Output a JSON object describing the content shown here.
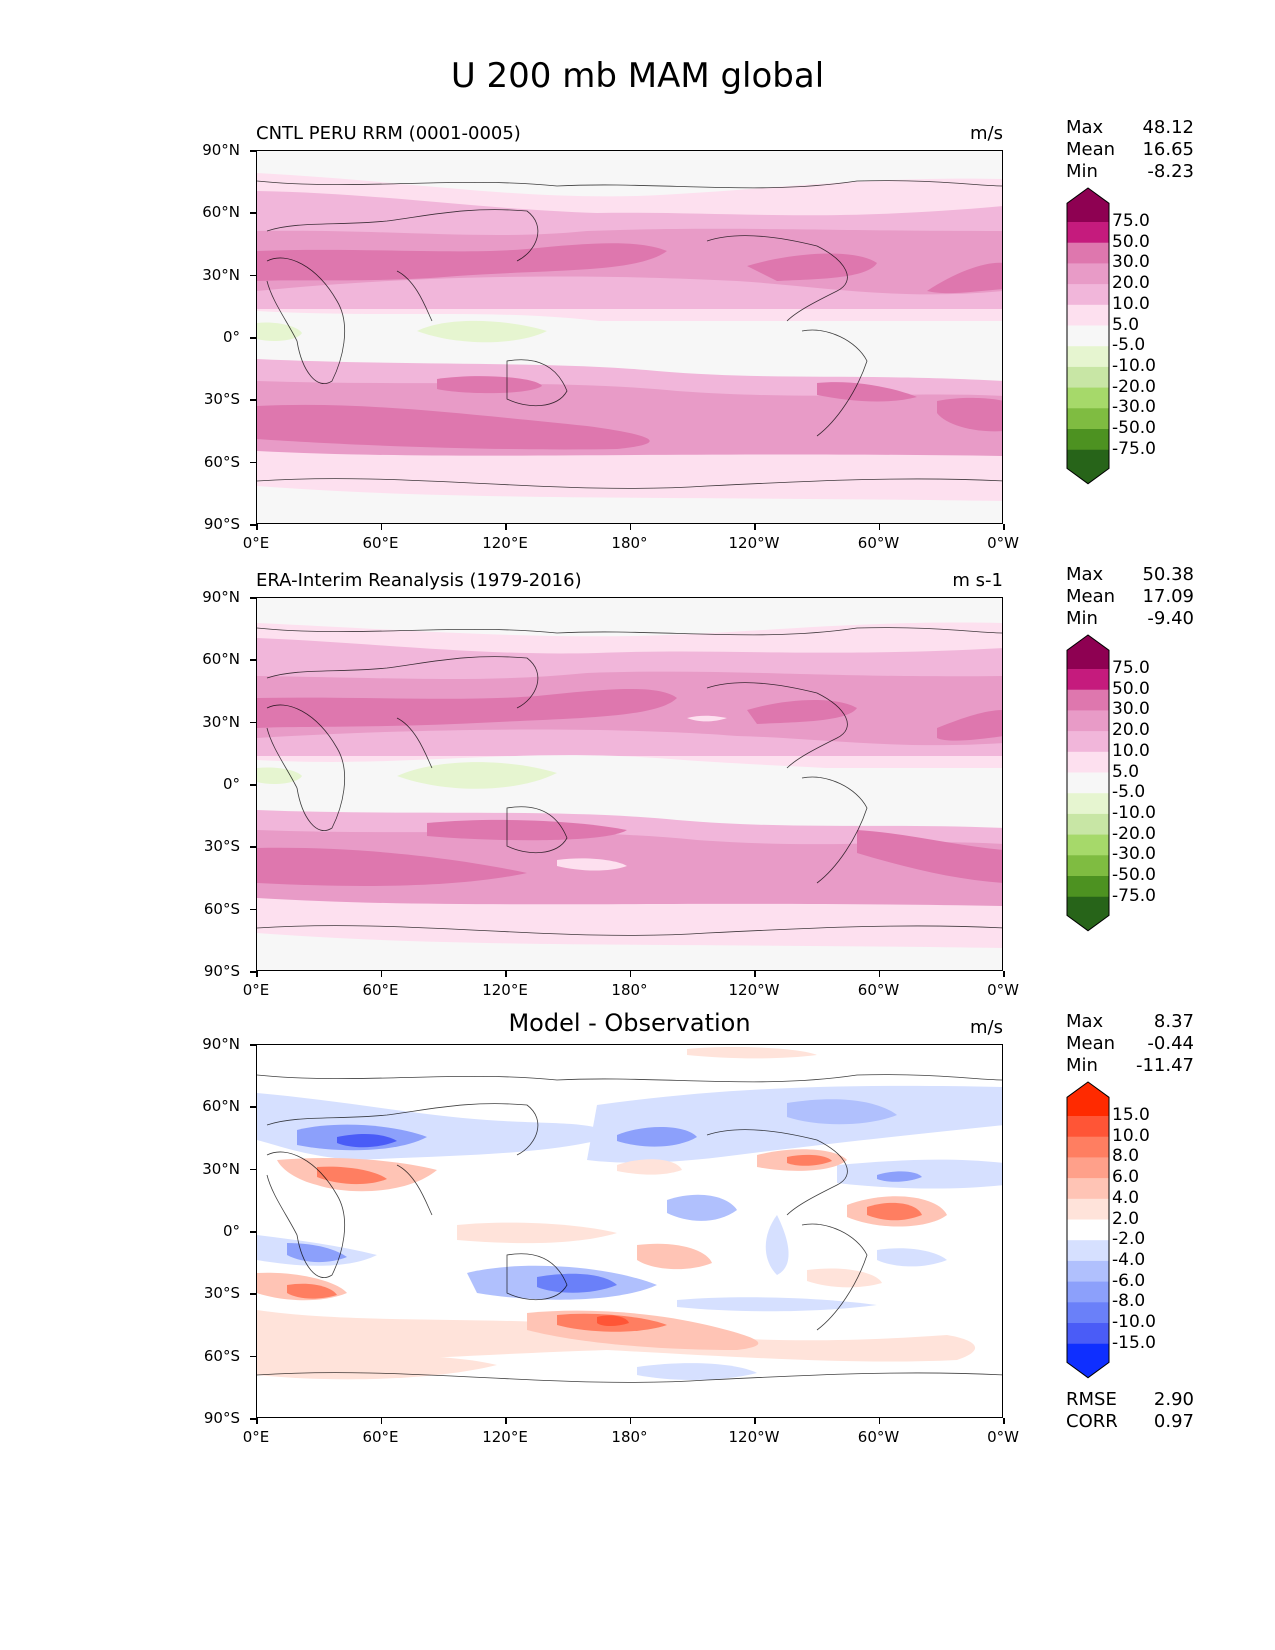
{
  "figure_title": "U 200 mb MAM global",
  "lat_labels": [
    "90°N",
    "60°N",
    "30°N",
    "0°",
    "30°S",
    "60°S",
    "90°S"
  ],
  "lon_labels": [
    "0°E",
    "60°E",
    "120°E",
    "180°",
    "120°W",
    "60°W",
    "0°W"
  ],
  "panels": [
    {
      "title": "CNTL PERU RRM (0001-0005)",
      "units": "m/s",
      "stats": [
        {
          "label": "Max",
          "value": "48.12"
        },
        {
          "label": "Mean",
          "value": "16.65"
        },
        {
          "label": "Min",
          "value": "-8.23"
        }
      ],
      "colorbar_labels": [
        "75.0",
        "50.0",
        "30.0",
        "20.0",
        "10.0",
        "5.0",
        "-5.0",
        "-10.0",
        "-20.0",
        "-30.0",
        "-50.0",
        "-75.0"
      ],
      "colorbar_colors": [
        "#8e0152",
        "#c51b7d",
        "#de77ae",
        "#e89bc7",
        "#f1b6da",
        "#fde0ef",
        "#f7f7f7",
        "#e6f5d0",
        "#c8e6a5",
        "#a6d96a",
        "#7fbc41",
        "#4d9221",
        "#276419"
      ]
    },
    {
      "title": "ERA-Interim Reanalysis (1979-2016)",
      "units": "m s-1",
      "stats": [
        {
          "label": "Max",
          "value": "50.38"
        },
        {
          "label": "Mean",
          "value": "17.09"
        },
        {
          "label": "Min",
          "value": "-9.40"
        }
      ],
      "colorbar_labels": [
        "75.0",
        "50.0",
        "30.0",
        "20.0",
        "10.0",
        "5.0",
        "-5.0",
        "-10.0",
        "-20.0",
        "-30.0",
        "-50.0",
        "-75.0"
      ],
      "colorbar_colors": [
        "#8e0152",
        "#c51b7d",
        "#de77ae",
        "#e89bc7",
        "#f1b6da",
        "#fde0ef",
        "#f7f7f7",
        "#e6f5d0",
        "#c8e6a5",
        "#a6d96a",
        "#7fbc41",
        "#4d9221",
        "#276419"
      ]
    },
    {
      "title": "Model - Observation",
      "units": "m/s",
      "stats": [
        {
          "label": "Max",
          "value": "8.37"
        },
        {
          "label": "Mean",
          "value": "-0.44"
        },
        {
          "label": "Min",
          "value": "-11.47"
        }
      ],
      "colorbar_labels": [
        "15.0",
        "10.0",
        "8.0",
        "6.0",
        "4.0",
        "2.0",
        "-2.0",
        "-4.0",
        "-6.0",
        "-8.0",
        "-10.0",
        "-15.0"
      ],
      "colorbar_colors": [
        "#ff2a00",
        "#ff5536",
        "#ff7e61",
        "#ffa08a",
        "#ffc4b5",
        "#ffe3da",
        "#ffffff",
        "#d6e0ff",
        "#b0c0fd",
        "#8ca0fb",
        "#6a80f9",
        "#4a5cf7",
        "#0f2fff"
      ],
      "metrics": [
        {
          "label": "RMSE",
          "value": "2.90"
        },
        {
          "label": "CORR",
          "value": "0.97"
        }
      ]
    }
  ]
}
